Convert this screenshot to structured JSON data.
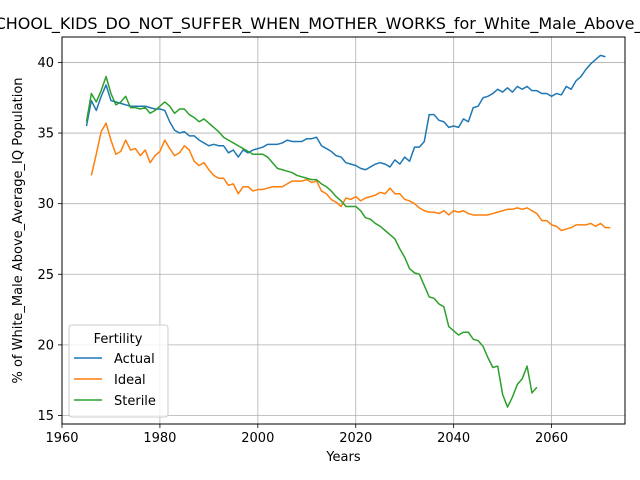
{
  "chart_data": {
    "type": "line",
    "title": "PRESCHOOL_KIDS_DO_NOT_SUFFER_WHEN_MOTHER_WORKS_for_White_Male_Above_Average_IQ",
    "xlabel": "Years",
    "ylabel": "% of White_Male Above_Average_IQ Population",
    "xlim": [
      1960,
      2075
    ],
    "ylim": [
      14.4,
      41.8
    ],
    "xticks": [
      1960,
      1980,
      2000,
      2020,
      2040,
      2060
    ],
    "yticks": [
      15,
      20,
      25,
      30,
      35,
      40
    ],
    "grid": true,
    "legend": {
      "title": "Fertility",
      "position": "lower-left"
    },
    "series": [
      {
        "name": "Actual",
        "color": "#1f77b4",
        "points": [
          [
            1965,
            35.5
          ],
          [
            1966,
            37.3
          ],
          [
            1967,
            36.6
          ],
          [
            1968,
            37.6
          ],
          [
            1969,
            38.4
          ],
          [
            1970,
            37.3
          ],
          [
            1971,
            37.2
          ],
          [
            1972,
            37.1
          ],
          [
            1973,
            37.0
          ],
          [
            1974,
            36.9
          ],
          [
            1975,
            36.9
          ],
          [
            1976,
            36.9
          ],
          [
            1977,
            36.9
          ],
          [
            1978,
            36.8
          ],
          [
            1979,
            36.7
          ],
          [
            1980,
            36.7
          ],
          [
            1981,
            36.6
          ],
          [
            1982,
            35.8
          ],
          [
            1983,
            35.2
          ],
          [
            1984,
            35.0
          ],
          [
            1985,
            35.1
          ],
          [
            1986,
            34.8
          ],
          [
            1987,
            34.8
          ],
          [
            1988,
            34.5
          ],
          [
            1989,
            34.3
          ],
          [
            1990,
            34.1
          ],
          [
            1991,
            34.2
          ],
          [
            1992,
            34.1
          ],
          [
            1993,
            34.1
          ],
          [
            1994,
            33.6
          ],
          [
            1995,
            33.8
          ],
          [
            1996,
            33.3
          ],
          [
            1997,
            33.8
          ],
          [
            1998,
            33.6
          ],
          [
            1999,
            33.8
          ],
          [
            2000,
            33.9
          ],
          [
            2001,
            34.0
          ],
          [
            2002,
            34.2
          ],
          [
            2003,
            34.2
          ],
          [
            2004,
            34.2
          ],
          [
            2005,
            34.3
          ],
          [
            2006,
            34.5
          ],
          [
            2007,
            34.4
          ],
          [
            2008,
            34.4
          ],
          [
            2009,
            34.4
          ],
          [
            2010,
            34.6
          ],
          [
            2011,
            34.6
          ],
          [
            2012,
            34.7
          ],
          [
            2013,
            34.1
          ],
          [
            2014,
            33.9
          ],
          [
            2015,
            33.7
          ],
          [
            2016,
            33.4
          ],
          [
            2017,
            33.3
          ],
          [
            2018,
            32.9
          ],
          [
            2019,
            32.8
          ],
          [
            2020,
            32.7
          ],
          [
            2021,
            32.5
          ],
          [
            2022,
            32.4
          ],
          [
            2023,
            32.6
          ],
          [
            2024,
            32.8
          ],
          [
            2025,
            32.9
          ],
          [
            2026,
            32.8
          ],
          [
            2027,
            32.6
          ],
          [
            2028,
            33.1
          ],
          [
            2029,
            32.8
          ],
          [
            2030,
            33.3
          ],
          [
            2031,
            33.0
          ],
          [
            2032,
            34.0
          ],
          [
            2033,
            34.0
          ],
          [
            2034,
            34.4
          ],
          [
            2035,
            36.3
          ],
          [
            2036,
            36.3
          ],
          [
            2037,
            35.9
          ],
          [
            2038,
            35.8
          ],
          [
            2039,
            35.4
          ],
          [
            2040,
            35.5
          ],
          [
            2041,
            35.4
          ],
          [
            2042,
            36.0
          ],
          [
            2043,
            35.8
          ],
          [
            2044,
            36.8
          ],
          [
            2045,
            36.9
          ],
          [
            2046,
            37.5
          ],
          [
            2047,
            37.6
          ],
          [
            2048,
            37.8
          ],
          [
            2049,
            38.1
          ],
          [
            2050,
            37.9
          ],
          [
            2051,
            38.2
          ],
          [
            2052,
            37.9
          ],
          [
            2053,
            38.3
          ],
          [
            2054,
            38.1
          ],
          [
            2055,
            38.3
          ],
          [
            2056,
            38.0
          ],
          [
            2057,
            38.0
          ],
          [
            2058,
            37.8
          ],
          [
            2059,
            37.8
          ],
          [
            2060,
            37.6
          ],
          [
            2061,
            37.8
          ],
          [
            2062,
            37.7
          ],
          [
            2063,
            38.3
          ],
          [
            2064,
            38.1
          ],
          [
            2065,
            38.7
          ],
          [
            2066,
            39.0
          ],
          [
            2067,
            39.5
          ],
          [
            2068,
            39.9
          ],
          [
            2069,
            40.2
          ],
          [
            2070,
            40.5
          ],
          [
            2071,
            40.4
          ]
        ]
      },
      {
        "name": "Ideal",
        "color": "#ff7f0e",
        "points": [
          [
            1966,
            32.0
          ],
          [
            1967,
            33.5
          ],
          [
            1968,
            35.1
          ],
          [
            1969,
            35.7
          ],
          [
            1970,
            34.5
          ],
          [
            1971,
            33.5
          ],
          [
            1972,
            33.7
          ],
          [
            1973,
            34.5
          ],
          [
            1974,
            33.8
          ],
          [
            1975,
            33.9
          ],
          [
            1976,
            33.4
          ],
          [
            1977,
            33.8
          ],
          [
            1978,
            32.9
          ],
          [
            1979,
            33.4
          ],
          [
            1980,
            33.7
          ],
          [
            1981,
            34.5
          ],
          [
            1982,
            33.9
          ],
          [
            1983,
            33.4
          ],
          [
            1984,
            33.6
          ],
          [
            1985,
            34.1
          ],
          [
            1986,
            33.8
          ],
          [
            1987,
            33.0
          ],
          [
            1988,
            32.7
          ],
          [
            1989,
            32.9
          ],
          [
            1990,
            32.4
          ],
          [
            1991,
            32.0
          ],
          [
            1992,
            31.8
          ],
          [
            1993,
            31.8
          ],
          [
            1994,
            31.3
          ],
          [
            1995,
            31.4
          ],
          [
            1996,
            30.7
          ],
          [
            1997,
            31.2
          ],
          [
            1998,
            31.2
          ],
          [
            1999,
            30.9
          ],
          [
            2000,
            31.0
          ],
          [
            2001,
            31.0
          ],
          [
            2002,
            31.1
          ],
          [
            2003,
            31.2
          ],
          [
            2004,
            31.2
          ],
          [
            2005,
            31.2
          ],
          [
            2006,
            31.4
          ],
          [
            2007,
            31.6
          ],
          [
            2008,
            31.6
          ],
          [
            2009,
            31.6
          ],
          [
            2010,
            31.7
          ],
          [
            2011,
            31.5
          ],
          [
            2012,
            31.6
          ],
          [
            2013,
            30.9
          ],
          [
            2014,
            30.7
          ],
          [
            2015,
            30.3
          ],
          [
            2016,
            30.1
          ],
          [
            2017,
            29.8
          ],
          [
            2018,
            30.4
          ],
          [
            2019,
            30.3
          ],
          [
            2020,
            30.5
          ],
          [
            2021,
            30.2
          ],
          [
            2022,
            30.4
          ],
          [
            2023,
            30.5
          ],
          [
            2024,
            30.6
          ],
          [
            2025,
            30.8
          ],
          [
            2026,
            30.7
          ],
          [
            2027,
            31.1
          ],
          [
            2028,
            30.7
          ],
          [
            2029,
            30.7
          ],
          [
            2030,
            30.3
          ],
          [
            2031,
            30.2
          ],
          [
            2032,
            30.0
          ],
          [
            2033,
            29.7
          ],
          [
            2034,
            29.5
          ],
          [
            2035,
            29.4
          ],
          [
            2036,
            29.4
          ],
          [
            2037,
            29.3
          ],
          [
            2038,
            29.5
          ],
          [
            2039,
            29.2
          ],
          [
            2040,
            29.5
          ],
          [
            2041,
            29.4
          ],
          [
            2042,
            29.5
          ],
          [
            2043,
            29.3
          ],
          [
            2044,
            29.2
          ],
          [
            2045,
            29.2
          ],
          [
            2046,
            29.2
          ],
          [
            2047,
            29.2
          ],
          [
            2048,
            29.3
          ],
          [
            2049,
            29.4
          ],
          [
            2050,
            29.5
          ],
          [
            2051,
            29.6
          ],
          [
            2052,
            29.6
          ],
          [
            2053,
            29.7
          ],
          [
            2054,
            29.6
          ],
          [
            2055,
            29.7
          ],
          [
            2056,
            29.5
          ],
          [
            2057,
            29.3
          ],
          [
            2058,
            28.8
          ],
          [
            2059,
            28.8
          ],
          [
            2060,
            28.5
          ],
          [
            2061,
            28.4
          ],
          [
            2062,
            28.1
          ],
          [
            2063,
            28.2
          ],
          [
            2064,
            28.3
          ],
          [
            2065,
            28.5
          ],
          [
            2066,
            28.5
          ],
          [
            2067,
            28.5
          ],
          [
            2068,
            28.6
          ],
          [
            2069,
            28.4
          ],
          [
            2070,
            28.6
          ],
          [
            2071,
            28.3
          ],
          [
            2072,
            28.3
          ]
        ]
      },
      {
        "name": "Sterile",
        "color": "#2ca02c",
        "points": [
          [
            1965,
            35.8
          ],
          [
            1966,
            37.8
          ],
          [
            1967,
            37.2
          ],
          [
            1968,
            38.0
          ],
          [
            1969,
            39.0
          ],
          [
            1970,
            37.8
          ],
          [
            1971,
            37.0
          ],
          [
            1972,
            37.2
          ],
          [
            1973,
            37.6
          ],
          [
            1974,
            36.8
          ],
          [
            1975,
            36.8
          ],
          [
            1976,
            36.7
          ],
          [
            1977,
            36.8
          ],
          [
            1978,
            36.4
          ],
          [
            1979,
            36.6
          ],
          [
            1980,
            36.9
          ],
          [
            1981,
            37.2
          ],
          [
            1982,
            36.9
          ],
          [
            1983,
            36.4
          ],
          [
            1984,
            36.7
          ],
          [
            1985,
            36.7
          ],
          [
            1986,
            36.3
          ],
          [
            1987,
            36.1
          ],
          [
            1988,
            35.8
          ],
          [
            1989,
            36.0
          ],
          [
            1990,
            35.7
          ],
          [
            1991,
            35.4
          ],
          [
            1992,
            35.1
          ],
          [
            1993,
            34.7
          ],
          [
            1994,
            34.5
          ],
          [
            1995,
            34.3
          ],
          [
            1996,
            34.1
          ],
          [
            1997,
            33.9
          ],
          [
            1998,
            33.7
          ],
          [
            1999,
            33.5
          ],
          [
            2000,
            33.5
          ],
          [
            2001,
            33.5
          ],
          [
            2002,
            33.3
          ],
          [
            2003,
            32.9
          ],
          [
            2004,
            32.5
          ],
          [
            2005,
            32.4
          ],
          [
            2006,
            32.3
          ],
          [
            2007,
            32.2
          ],
          [
            2008,
            32.0
          ],
          [
            2009,
            31.9
          ],
          [
            2010,
            31.8
          ],
          [
            2011,
            31.7
          ],
          [
            2012,
            31.7
          ],
          [
            2013,
            31.4
          ],
          [
            2014,
            31.2
          ],
          [
            2015,
            30.9
          ],
          [
            2016,
            30.5
          ],
          [
            2017,
            30.2
          ],
          [
            2018,
            29.8
          ],
          [
            2019,
            29.8
          ],
          [
            2020,
            29.8
          ],
          [
            2021,
            29.5
          ],
          [
            2022,
            29.0
          ],
          [
            2023,
            28.9
          ],
          [
            2024,
            28.6
          ],
          [
            2025,
            28.4
          ],
          [
            2026,
            28.1
          ],
          [
            2027,
            27.8
          ],
          [
            2028,
            27.5
          ],
          [
            2029,
            26.8
          ],
          [
            2030,
            26.2
          ],
          [
            2031,
            25.4
          ],
          [
            2032,
            25.1
          ],
          [
            2033,
            25.0
          ],
          [
            2034,
            24.2
          ],
          [
            2035,
            23.4
          ],
          [
            2036,
            23.3
          ],
          [
            2037,
            22.9
          ],
          [
            2038,
            22.7
          ],
          [
            2039,
            21.3
          ],
          [
            2040,
            21.0
          ],
          [
            2041,
            20.7
          ],
          [
            2042,
            20.9
          ],
          [
            2043,
            20.9
          ],
          [
            2044,
            20.4
          ],
          [
            2045,
            20.3
          ],
          [
            2046,
            19.9
          ],
          [
            2047,
            19.1
          ],
          [
            2048,
            18.4
          ],
          [
            2049,
            18.5
          ],
          [
            2050,
            16.5
          ],
          [
            2051,
            15.6
          ],
          [
            2052,
            16.3
          ],
          [
            2053,
            17.2
          ],
          [
            2054,
            17.6
          ],
          [
            2055,
            18.5
          ],
          [
            2056,
            16.6
          ],
          [
            2057,
            17.0
          ]
        ]
      }
    ]
  }
}
